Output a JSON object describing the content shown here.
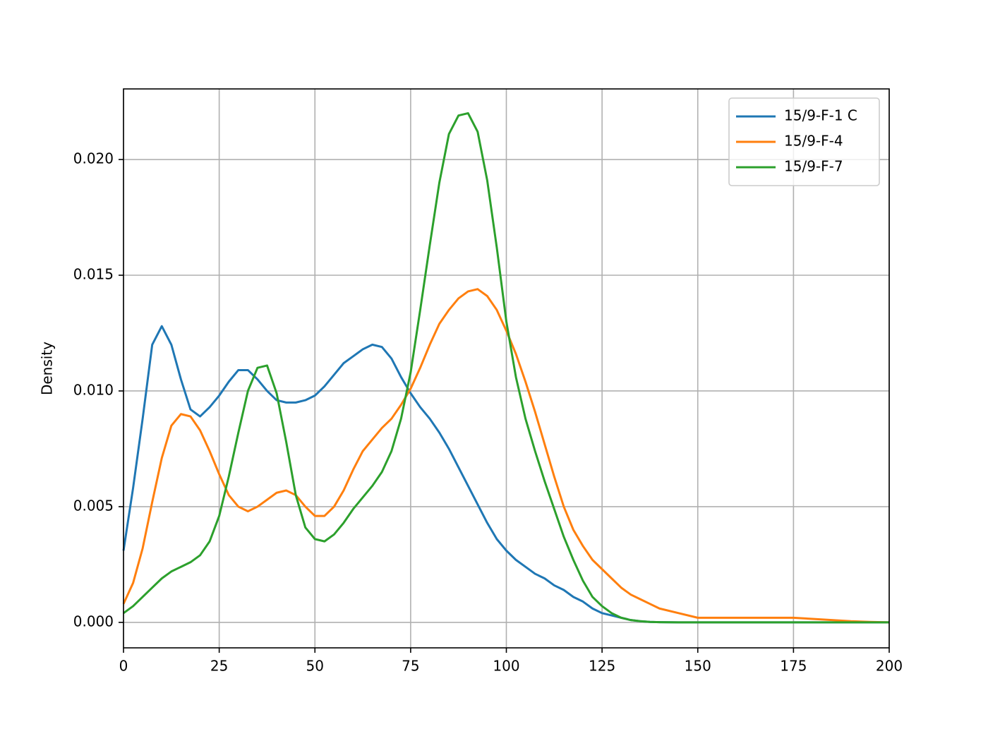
{
  "chart_data": {
    "type": "line",
    "ylabel": "Density",
    "x": [
      0,
      2.5,
      5,
      7.5,
      10,
      12.5,
      15,
      17.5,
      20,
      22.5,
      25,
      27.5,
      30,
      32.5,
      35,
      37.5,
      40,
      42.5,
      45,
      47.5,
      50,
      52.5,
      55,
      57.5,
      60,
      62.5,
      65,
      67.5,
      70,
      72.5,
      75,
      77.5,
      80,
      82.5,
      85,
      87.5,
      90,
      92.5,
      95,
      97.5,
      100,
      102.5,
      105,
      107.5,
      110,
      112.5,
      115,
      117.5,
      120,
      122.5,
      125,
      127.5,
      130,
      132.5,
      135,
      137.5,
      140,
      145,
      150,
      155,
      160,
      165,
      170,
      175,
      180,
      185,
      190,
      195,
      200
    ],
    "series": [
      {
        "name": "15/9-F-1 C",
        "color": "#1f77b4",
        "values": [
          0.0031,
          0.0058,
          0.0088,
          0.012,
          0.0128,
          0.012,
          0.0105,
          0.0092,
          0.0089,
          0.0093,
          0.0098,
          0.0104,
          0.0109,
          0.0109,
          0.0105,
          0.01,
          0.0096,
          0.0095,
          0.0095,
          0.0096,
          0.0098,
          0.0102,
          0.0107,
          0.0112,
          0.0115,
          0.0118,
          0.012,
          0.0119,
          0.0114,
          0.0106,
          0.0099,
          0.0093,
          0.0088,
          0.0082,
          0.0075,
          0.0067,
          0.0059,
          0.0051,
          0.0043,
          0.0036,
          0.0031,
          0.0027,
          0.0024,
          0.0021,
          0.0019,
          0.0016,
          0.0014,
          0.0011,
          0.0009,
          0.0006,
          0.0004,
          0.0003,
          0.0002,
          0.0001,
          5e-05,
          2e-05,
          1e-05,
          0,
          0,
          0,
          0,
          0,
          0,
          0,
          0,
          0,
          0,
          0,
          0
        ]
      },
      {
        "name": "15/9-F-4",
        "color": "#ff7f0e",
        "values": [
          0.0008,
          0.0017,
          0.0032,
          0.0052,
          0.0071,
          0.0085,
          0.009,
          0.0089,
          0.0083,
          0.0074,
          0.0064,
          0.0055,
          0.005,
          0.0048,
          0.005,
          0.0053,
          0.0056,
          0.0057,
          0.0055,
          0.005,
          0.0046,
          0.0046,
          0.005,
          0.0057,
          0.0066,
          0.0074,
          0.0079,
          0.0084,
          0.0088,
          0.0094,
          0.0101,
          0.011,
          0.012,
          0.0129,
          0.0135,
          0.014,
          0.0143,
          0.0144,
          0.0141,
          0.0135,
          0.0126,
          0.0116,
          0.0104,
          0.0091,
          0.0077,
          0.0063,
          0.005,
          0.004,
          0.0033,
          0.0027,
          0.0023,
          0.0019,
          0.0015,
          0.0012,
          0.001,
          0.0008,
          0.0006,
          0.0004,
          0.0002,
          0.0002,
          0.0002,
          0.0002,
          0.0002,
          0.0002,
          0.00015,
          0.0001,
          5e-05,
          2e-05,
          0
        ]
      },
      {
        "name": "15/9-F-7",
        "color": "#2ca02c",
        "values": [
          0.0004,
          0.0007,
          0.0011,
          0.0015,
          0.0019,
          0.0022,
          0.0024,
          0.0026,
          0.0029,
          0.0035,
          0.0046,
          0.0063,
          0.0082,
          0.01,
          0.011,
          0.0111,
          0.0099,
          0.0078,
          0.0055,
          0.0041,
          0.0036,
          0.0035,
          0.0038,
          0.0043,
          0.0049,
          0.0054,
          0.0059,
          0.0065,
          0.0074,
          0.0088,
          0.0108,
          0.0135,
          0.0163,
          0.019,
          0.0211,
          0.0219,
          0.022,
          0.0212,
          0.0191,
          0.0162,
          0.013,
          0.0106,
          0.0088,
          0.0074,
          0.0061,
          0.0049,
          0.0037,
          0.0027,
          0.0018,
          0.0011,
          0.0007,
          0.0004,
          0.0002,
          0.0001,
          5e-05,
          2e-05,
          1e-05,
          0,
          0,
          0,
          0,
          0,
          0,
          0,
          0,
          0,
          0,
          0,
          0
        ]
      }
    ],
    "xlim": [
      0,
      200
    ],
    "xticks": [
      0,
      25,
      50,
      75,
      100,
      125,
      150,
      175,
      200
    ],
    "ylim": [
      -0.0011,
      0.02305
    ],
    "yticks": [
      {
        "value": 0,
        "label": "0.000"
      },
      {
        "value": 0.005,
        "label": "0.005"
      },
      {
        "value": 0.01,
        "label": "0.010"
      },
      {
        "value": 0.015,
        "label": "0.015"
      },
      {
        "value": 0.02,
        "label": "0.020"
      }
    ],
    "grid": true,
    "legend": "upper right"
  }
}
